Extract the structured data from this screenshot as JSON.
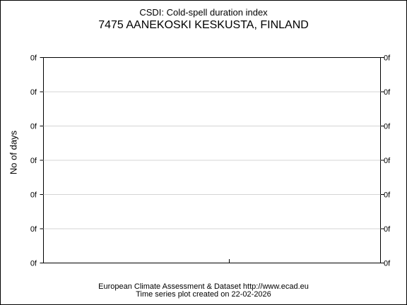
{
  "chart_data": {
    "type": "line",
    "title": "CSDI: Cold-spell duration index",
    "subtitle": "7475 AANEKOSKI KESKUSTA, FINLAND",
    "ylabel": "No of days",
    "xlabel": "",
    "y_tick_labels": [
      "0f",
      "0f",
      "0f",
      "0f",
      "0f",
      "0f",
      "0f"
    ],
    "series": [],
    "grid": true,
    "right_axis_ticks": true
  },
  "footer": {
    "line1": "European Climate Assessment & Dataset  http://www.ecad.eu",
    "line2": "Time series plot created on 22-02-2026"
  }
}
